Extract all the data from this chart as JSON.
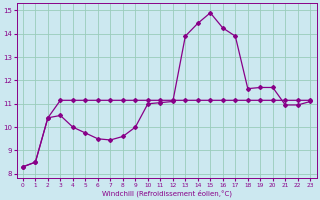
{
  "xlabel": "Windchill (Refroidissement éolien,°C)",
  "bg_color": "#cce8f0",
  "line_color": "#880088",
  "grid_color": "#99ccbb",
  "xlim": [
    -0.5,
    23.5
  ],
  "ylim": [
    7.8,
    15.3
  ],
  "yticks": [
    8,
    9,
    10,
    11,
    12,
    13,
    14,
    15
  ],
  "xticks": [
    0,
    1,
    2,
    3,
    4,
    5,
    6,
    7,
    8,
    9,
    10,
    11,
    12,
    13,
    14,
    15,
    16,
    17,
    18,
    19,
    20,
    21,
    22,
    23
  ],
  "series1_x": [
    0,
    1,
    2,
    3,
    4,
    5,
    6,
    7,
    8,
    9,
    10,
    11,
    12,
    13,
    14,
    15,
    16,
    17,
    18,
    19,
    20,
    21,
    22,
    23
  ],
  "series1_y": [
    8.3,
    8.5,
    10.4,
    10.5,
    10.0,
    9.75,
    9.5,
    9.45,
    9.6,
    10.0,
    11.0,
    11.05,
    11.1,
    13.9,
    14.45,
    14.9,
    14.25,
    13.9,
    11.65,
    11.7,
    11.7,
    10.95,
    10.95,
    11.1
  ],
  "series2_x": [
    0,
    1,
    2,
    3,
    4,
    5,
    6,
    7,
    8,
    9,
    10,
    11,
    12,
    13,
    14,
    15,
    16,
    17,
    18,
    19,
    20,
    21,
    22,
    23
  ],
  "series2_y": [
    8.3,
    8.5,
    10.4,
    11.15,
    11.15,
    11.15,
    11.15,
    11.15,
    11.15,
    11.15,
    11.15,
    11.15,
    11.15,
    11.15,
    11.15,
    11.15,
    11.15,
    11.15,
    11.15,
    11.15,
    11.15,
    11.15,
    11.15,
    11.15
  ],
  "marker": "D",
  "markersize": 2.0,
  "linewidth": 0.9
}
